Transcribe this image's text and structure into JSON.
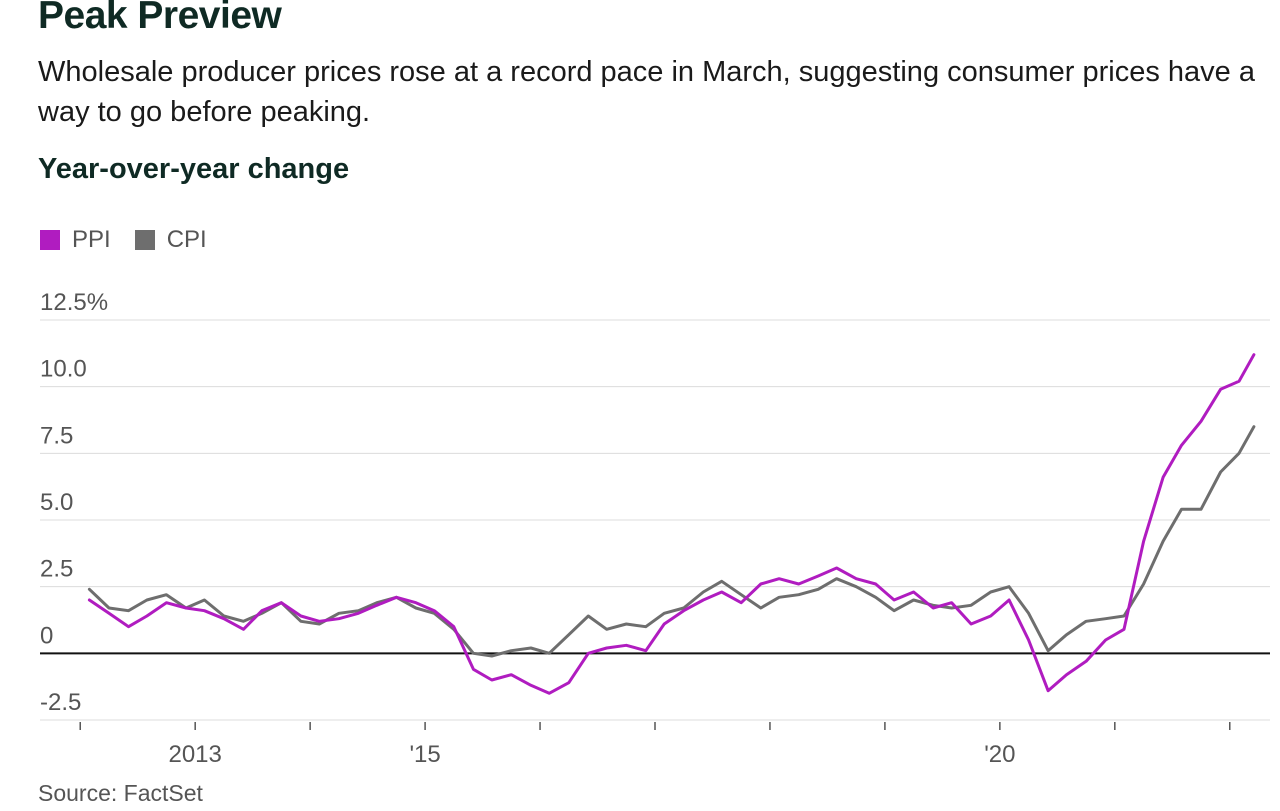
{
  "header": {
    "title": "Peak Preview",
    "subtitle": "Wholesale producer prices rose at a record pace in March, suggesting consumer prices have a way to go before peaking.",
    "ylabel": "Year-over-year change"
  },
  "footer": {
    "source": "Source: FactSet"
  },
  "colors": {
    "PPI": "#b01cc0",
    "CPI": "#6e6e6e"
  },
  "chart_data": {
    "type": "line",
    "ylabel": "Year-over-year change",
    "ylim": [
      -2.5,
      12.5
    ],
    "yticks": [
      {
        "value": 12.5,
        "label": "12.5%"
      },
      {
        "value": 10,
        "label": "10.0"
      },
      {
        "value": 7.5,
        "label": "7.5"
      },
      {
        "value": 5,
        "label": "5.0"
      },
      {
        "value": 2.5,
        "label": "2.5"
      },
      {
        "value": 0,
        "label": "0"
      },
      {
        "value": -2.5,
        "label": "-2.5"
      }
    ],
    "xlim": [
      2011.65,
      2022.35
    ],
    "xtick_marks": [
      2012,
      2013,
      2014,
      2015,
      2016,
      2017,
      2018,
      2019,
      2020,
      2021,
      2022
    ],
    "xtick_labels": [
      {
        "value": 2013,
        "label": "2013"
      },
      {
        "value": 2015,
        "label": "'15"
      },
      {
        "value": 2020,
        "label": "'20"
      }
    ],
    "grid": true,
    "legend_position": "top-left",
    "series": [
      {
        "name": "PPI",
        "points": [
          [
            2012.08,
            2.0
          ],
          [
            2012.25,
            1.5
          ],
          [
            2012.42,
            1.0
          ],
          [
            2012.58,
            1.4
          ],
          [
            2012.75,
            1.9
          ],
          [
            2012.92,
            1.7
          ],
          [
            2013.08,
            1.6
          ],
          [
            2013.25,
            1.3
          ],
          [
            2013.42,
            0.9
          ],
          [
            2013.58,
            1.6
          ],
          [
            2013.75,
            1.9
          ],
          [
            2013.92,
            1.4
          ],
          [
            2014.08,
            1.2
          ],
          [
            2014.25,
            1.3
          ],
          [
            2014.42,
            1.5
          ],
          [
            2014.58,
            1.8
          ],
          [
            2014.75,
            2.1
          ],
          [
            2014.92,
            1.9
          ],
          [
            2015.08,
            1.6
          ],
          [
            2015.25,
            1.0
          ],
          [
            2015.42,
            -0.6
          ],
          [
            2015.58,
            -1.0
          ],
          [
            2015.75,
            -0.8
          ],
          [
            2015.92,
            -1.2
          ],
          [
            2016.08,
            -1.5
          ],
          [
            2016.25,
            -1.1
          ],
          [
            2016.42,
            0.0
          ],
          [
            2016.58,
            0.2
          ],
          [
            2016.75,
            0.3
          ],
          [
            2016.92,
            0.1
          ],
          [
            2017.08,
            1.1
          ],
          [
            2017.25,
            1.6
          ],
          [
            2017.42,
            2.0
          ],
          [
            2017.58,
            2.3
          ],
          [
            2017.75,
            1.9
          ],
          [
            2017.92,
            2.6
          ],
          [
            2018.08,
            2.8
          ],
          [
            2018.25,
            2.6
          ],
          [
            2018.42,
            2.9
          ],
          [
            2018.58,
            3.2
          ],
          [
            2018.75,
            2.8
          ],
          [
            2018.92,
            2.6
          ],
          [
            2019.08,
            2.0
          ],
          [
            2019.25,
            2.3
          ],
          [
            2019.42,
            1.7
          ],
          [
            2019.58,
            1.9
          ],
          [
            2019.75,
            1.1
          ],
          [
            2019.92,
            1.4
          ],
          [
            2020.08,
            2.0
          ],
          [
            2020.25,
            0.5
          ],
          [
            2020.42,
            -1.4
          ],
          [
            2020.58,
            -0.8
          ],
          [
            2020.75,
            -0.3
          ],
          [
            2020.92,
            0.5
          ],
          [
            2021.08,
            0.9
          ],
          [
            2021.25,
            4.2
          ],
          [
            2021.42,
            6.6
          ],
          [
            2021.58,
            7.8
          ],
          [
            2021.75,
            8.7
          ],
          [
            2021.92,
            9.9
          ],
          [
            2022.08,
            10.2
          ],
          [
            2022.21,
            11.2
          ]
        ]
      },
      {
        "name": "CPI",
        "points": [
          [
            2012.08,
            2.4
          ],
          [
            2012.25,
            1.7
          ],
          [
            2012.42,
            1.6
          ],
          [
            2012.58,
            2.0
          ],
          [
            2012.75,
            2.2
          ],
          [
            2012.92,
            1.7
          ],
          [
            2013.08,
            2.0
          ],
          [
            2013.25,
            1.4
          ],
          [
            2013.42,
            1.2
          ],
          [
            2013.58,
            1.5
          ],
          [
            2013.75,
            1.9
          ],
          [
            2013.92,
            1.2
          ],
          [
            2014.08,
            1.1
          ],
          [
            2014.25,
            1.5
          ],
          [
            2014.42,
            1.6
          ],
          [
            2014.58,
            1.9
          ],
          [
            2014.75,
            2.1
          ],
          [
            2014.92,
            1.7
          ],
          [
            2015.08,
            1.5
          ],
          [
            2015.25,
            0.9
          ],
          [
            2015.42,
            0.0
          ],
          [
            2015.58,
            -0.1
          ],
          [
            2015.75,
            0.1
          ],
          [
            2015.92,
            0.2
          ],
          [
            2016.08,
            0.0
          ],
          [
            2016.25,
            0.7
          ],
          [
            2016.42,
            1.4
          ],
          [
            2016.58,
            0.9
          ],
          [
            2016.75,
            1.1
          ],
          [
            2016.92,
            1.0
          ],
          [
            2017.08,
            1.5
          ],
          [
            2017.25,
            1.7
          ],
          [
            2017.42,
            2.3
          ],
          [
            2017.58,
            2.7
          ],
          [
            2017.75,
            2.2
          ],
          [
            2017.92,
            1.7
          ],
          [
            2018.08,
            2.1
          ],
          [
            2018.25,
            2.2
          ],
          [
            2018.42,
            2.4
          ],
          [
            2018.58,
            2.8
          ],
          [
            2018.75,
            2.5
          ],
          [
            2018.92,
            2.1
          ],
          [
            2019.08,
            1.6
          ],
          [
            2019.25,
            2.0
          ],
          [
            2019.42,
            1.8
          ],
          [
            2019.58,
            1.7
          ],
          [
            2019.75,
            1.8
          ],
          [
            2019.92,
            2.3
          ],
          [
            2020.08,
            2.5
          ],
          [
            2020.25,
            1.5
          ],
          [
            2020.42,
            0.1
          ],
          [
            2020.58,
            0.7
          ],
          [
            2020.75,
            1.2
          ],
          [
            2020.92,
            1.3
          ],
          [
            2021.08,
            1.4
          ],
          [
            2021.25,
            2.6
          ],
          [
            2021.42,
            4.2
          ],
          [
            2021.58,
            5.4
          ],
          [
            2021.75,
            5.4
          ],
          [
            2021.92,
            6.8
          ],
          [
            2022.08,
            7.5
          ],
          [
            2022.21,
            8.5
          ]
        ]
      }
    ]
  }
}
